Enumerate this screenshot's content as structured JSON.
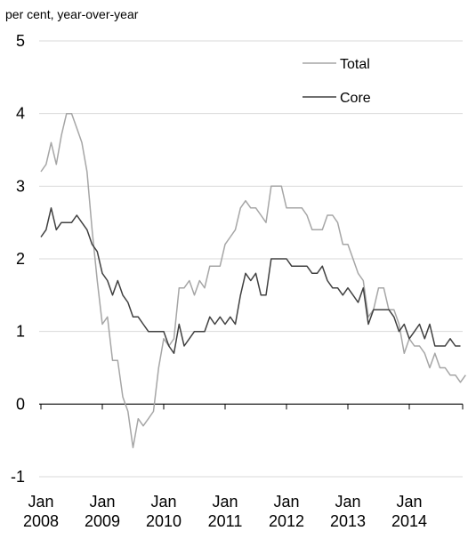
{
  "chart_data": {
    "type": "line",
    "ylabel": "per cent, year-over-year",
    "ylim": [
      -1,
      5
    ],
    "yticks": [
      "-1",
      "0",
      "1",
      "2",
      "3",
      "4",
      "5"
    ],
    "xstart": "2008-01",
    "xticks": [
      {
        "month": "Jan",
        "year": "2008"
      },
      {
        "month": "Jan",
        "year": "2009"
      },
      {
        "month": "Jan",
        "year": "2010"
      },
      {
        "month": "Jan",
        "year": "2011"
      },
      {
        "month": "Jan",
        "year": "2012"
      },
      {
        "month": "Jan",
        "year": "2013"
      },
      {
        "month": "Jan",
        "year": "2014"
      }
    ],
    "grid": true,
    "legend_position": "top-right",
    "series": [
      {
        "name": "Total",
        "color": "#a6a6a6",
        "values": [
          3.2,
          3.3,
          3.6,
          3.3,
          3.7,
          4.0,
          4.0,
          3.8,
          3.6,
          3.2,
          2.4,
          1.7,
          1.1,
          1.2,
          0.6,
          0.6,
          0.1,
          -0.1,
          -0.6,
          -0.2,
          -0.3,
          -0.2,
          -0.1,
          0.5,
          0.9,
          0.8,
          0.9,
          1.6,
          1.6,
          1.7,
          1.5,
          1.7,
          1.6,
          1.9,
          1.9,
          1.9,
          2.2,
          2.3,
          2.4,
          2.7,
          2.8,
          2.7,
          2.7,
          2.6,
          2.5,
          3.0,
          3.0,
          3.0,
          2.7,
          2.7,
          2.7,
          2.7,
          2.6,
          2.4,
          2.4,
          2.4,
          2.6,
          2.6,
          2.5,
          2.2,
          2.2,
          2.0,
          1.8,
          1.7,
          1.2,
          1.3,
          1.6,
          1.6,
          1.3,
          1.3,
          1.1,
          0.7,
          0.9,
          0.8,
          0.8,
          0.7,
          0.5,
          0.7,
          0.5,
          0.5,
          0.4,
          0.4,
          0.3,
          0.4
        ]
      },
      {
        "name": "Core",
        "color": "#404040",
        "values": [
          2.3,
          2.4,
          2.7,
          2.4,
          2.5,
          2.5,
          2.5,
          2.6,
          2.5,
          2.4,
          2.2,
          2.1,
          1.8,
          1.7,
          1.5,
          1.7,
          1.5,
          1.4,
          1.2,
          1.2,
          1.1,
          1.0,
          1.0,
          1.0,
          1.0,
          0.8,
          0.7,
          1.1,
          0.8,
          0.9,
          1.0,
          1.0,
          1.0,
          1.2,
          1.1,
          1.2,
          1.1,
          1.2,
          1.1,
          1.5,
          1.8,
          1.7,
          1.8,
          1.5,
          1.5,
          2.0,
          2.0,
          2.0,
          2.0,
          1.9,
          1.9,
          1.9,
          1.9,
          1.8,
          1.8,
          1.9,
          1.7,
          1.6,
          1.6,
          1.5,
          1.6,
          1.5,
          1.4,
          1.6,
          1.1,
          1.3,
          1.3,
          1.3,
          1.3,
          1.2,
          1.0,
          1.1,
          0.9,
          1.0,
          1.1,
          0.9,
          1.1,
          0.8,
          0.8,
          0.8,
          0.9,
          0.8,
          0.8
        ]
      }
    ]
  }
}
